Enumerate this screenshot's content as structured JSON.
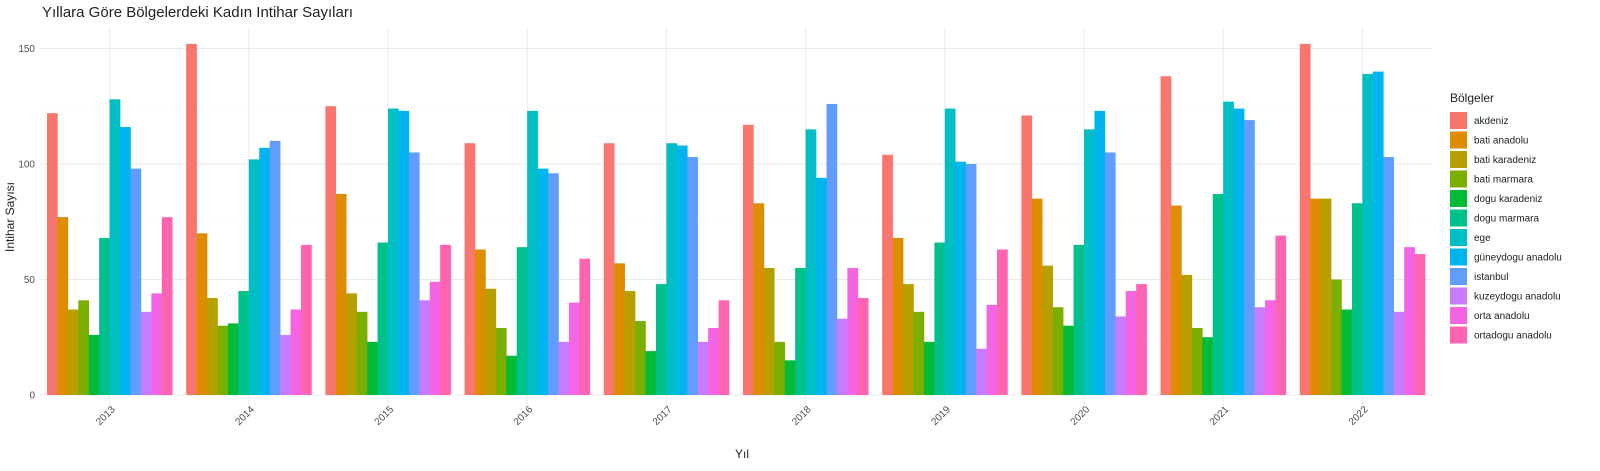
{
  "chart_data": {
    "type": "bar",
    "title": "Yıllara Göre Bölgelerdeki Kadın Intihar Sayıları",
    "xlabel": "Yıl",
    "ylabel": "Intihar Sayısı",
    "ylim": [
      0,
      160
    ],
    "yticks": [
      0,
      50,
      100,
      150
    ],
    "grid": true,
    "legend": {
      "title": "Bölgeler",
      "position": "right"
    },
    "categories": [
      "2013",
      "2014",
      "2015",
      "2016",
      "2017",
      "2018",
      "2019",
      "2020",
      "2021",
      "2022"
    ],
    "series": [
      {
        "name": "akdeniz",
        "color": "#F8766D",
        "values": [
          122,
          152,
          125,
          109,
          109,
          117,
          104,
          121,
          138,
          152
        ]
      },
      {
        "name": "bati anadolu",
        "color": "#DE8C00",
        "values": [
          77,
          70,
          87,
          63,
          57,
          83,
          68,
          85,
          82,
          85
        ]
      },
      {
        "name": "bati karadeniz",
        "color": "#B79F00",
        "values": [
          37,
          42,
          44,
          46,
          45,
          55,
          48,
          56,
          52,
          85
        ]
      },
      {
        "name": "bati marmara",
        "color": "#7CAE00",
        "values": [
          41,
          30,
          36,
          29,
          32,
          23,
          36,
          38,
          29,
          50
        ]
      },
      {
        "name": "dogu karadeniz",
        "color": "#00BA38",
        "values": [
          26,
          31,
          23,
          17,
          19,
          15,
          23,
          30,
          25,
          37
        ]
      },
      {
        "name": "dogu marmara",
        "color": "#00C08B",
        "values": [
          68,
          45,
          66,
          64,
          48,
          55,
          66,
          65,
          87,
          83
        ]
      },
      {
        "name": "ege",
        "color": "#00BFC4",
        "values": [
          128,
          102,
          124,
          123,
          109,
          115,
          124,
          115,
          127,
          139
        ]
      },
      {
        "name": "güneydogu anadolu",
        "color": "#00B4F0",
        "values": [
          116,
          107,
          123,
          98,
          108,
          94,
          101,
          123,
          124,
          140
        ]
      },
      {
        "name": "istanbul",
        "color": "#619CFF",
        "values": [
          98,
          110,
          105,
          96,
          103,
          126,
          100,
          105,
          119,
          103
        ]
      },
      {
        "name": "kuzeydogu anadolu",
        "color": "#C77CFF",
        "values": [
          36,
          26,
          41,
          23,
          23,
          33,
          20,
          34,
          38,
          36
        ]
      },
      {
        "name": "orta anadolu",
        "color": "#F564E3",
        "values": [
          44,
          37,
          49,
          40,
          29,
          55,
          39,
          45,
          41,
          64
        ]
      },
      {
        "name": "ortadogu anadolu",
        "color": "#FF64B0",
        "values": [
          77,
          65,
          65,
          59,
          41,
          42,
          63,
          48,
          69,
          61
        ]
      }
    ]
  }
}
